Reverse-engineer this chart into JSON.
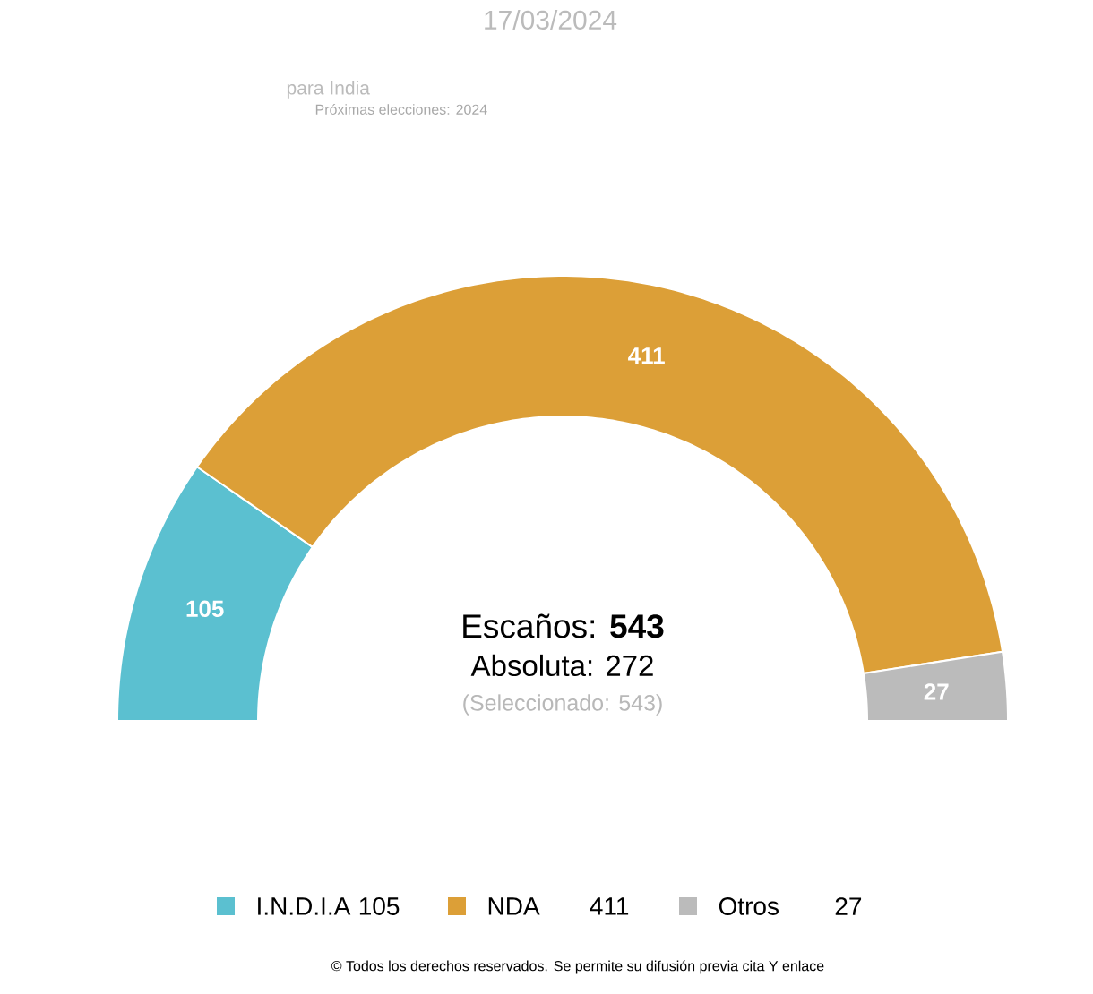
{
  "chart_data": {
    "type": "donut",
    "title": "17/03/2024",
    "subtitle": "para India",
    "categories": [
      "I.N.D.I.A",
      "NDA",
      "Otros"
    ],
    "values": [
      105,
      411,
      27
    ],
    "colors": [
      "#5bc0d0",
      "#dc9f37",
      "#bbbbbb"
    ],
    "data_labels": true,
    "legend": "bottom",
    "annotations": [
      "Próximas elecciones: 2024",
      "Escaños: **543**",
      "Absoluta: 272",
      "(Seleccionado: 543)",
      "© Todos los derechos reservados. Se permite su difusión previa cita Y enlace",
      "105",
      "411",
      "27"
    ]
  }
}
